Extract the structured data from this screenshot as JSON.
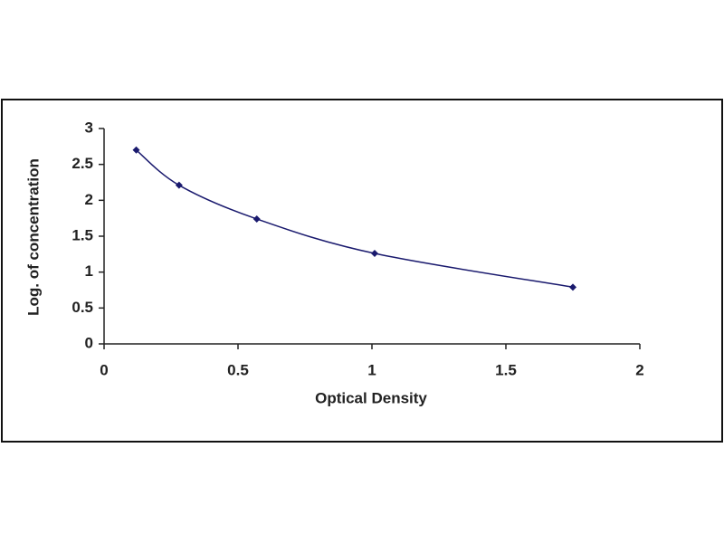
{
  "chart_data": {
    "type": "line",
    "x_label": "Optical Density",
    "y_label": "Log. of concentration",
    "x": [
      0.12,
      0.28,
      0.57,
      1.01,
      1.75
    ],
    "series": [
      {
        "color": "#1a1a6e",
        "values": [
          2.7,
          2.21,
          1.74,
          1.26,
          0.79
        ]
      }
    ],
    "xlim": [
      0,
      2
    ],
    "xticks": [
      0,
      0.5,
      1,
      1.5,
      2
    ],
    "ylim": [
      0,
      3
    ],
    "yticks": [
      0,
      0.5,
      1,
      1.5,
      2,
      2.5,
      3
    ],
    "grid": false,
    "markers": true,
    "smooth": true
  }
}
